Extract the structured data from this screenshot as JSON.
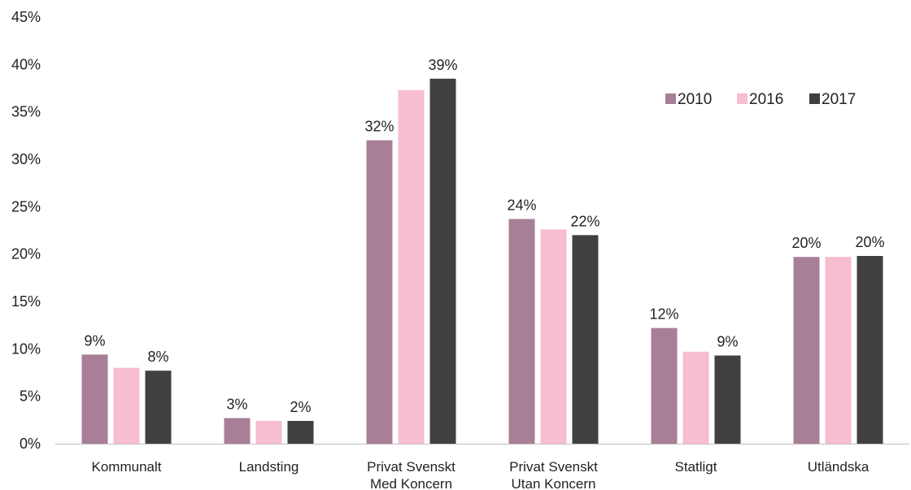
{
  "chart_data": {
    "type": "bar",
    "categories": [
      [
        "Kommunalt"
      ],
      [
        "Landsting"
      ],
      [
        "Privat Svenskt",
        "Med Koncern"
      ],
      [
        "Privat Svenskt",
        "Utan Koncern"
      ],
      [
        "Statligt"
      ],
      [
        "Utländska"
      ]
    ],
    "series": [
      {
        "name": "2010",
        "color": "#a87f96",
        "values": [
          9.4,
          2.7,
          32.0,
          23.7,
          12.2,
          19.7
        ]
      },
      {
        "name": "2016",
        "color": "#f7bdd0",
        "values": [
          8.0,
          2.4,
          37.3,
          22.6,
          9.7,
          19.7
        ]
      },
      {
        "name": "2017",
        "color": "#404040",
        "values": [
          7.7,
          2.4,
          38.5,
          22.0,
          9.3,
          19.8
        ]
      }
    ],
    "data_labels": [
      [
        "9%",
        "",
        "8%"
      ],
      [
        "3%",
        "",
        "2%"
      ],
      [
        "32%",
        "",
        "39%"
      ],
      [
        "24%",
        "",
        "22%"
      ],
      [
        "12%",
        "",
        "9%"
      ],
      [
        "20%",
        "",
        "20%"
      ]
    ],
    "y_ticks": [
      "0%",
      "5%",
      "10%",
      "15%",
      "20%",
      "25%",
      "30%",
      "35%",
      "40%",
      "45%"
    ],
    "ylim": [
      0,
      45
    ],
    "title": "",
    "xlabel": "",
    "ylabel": "",
    "grid": false,
    "legend_position": "top-right"
  }
}
